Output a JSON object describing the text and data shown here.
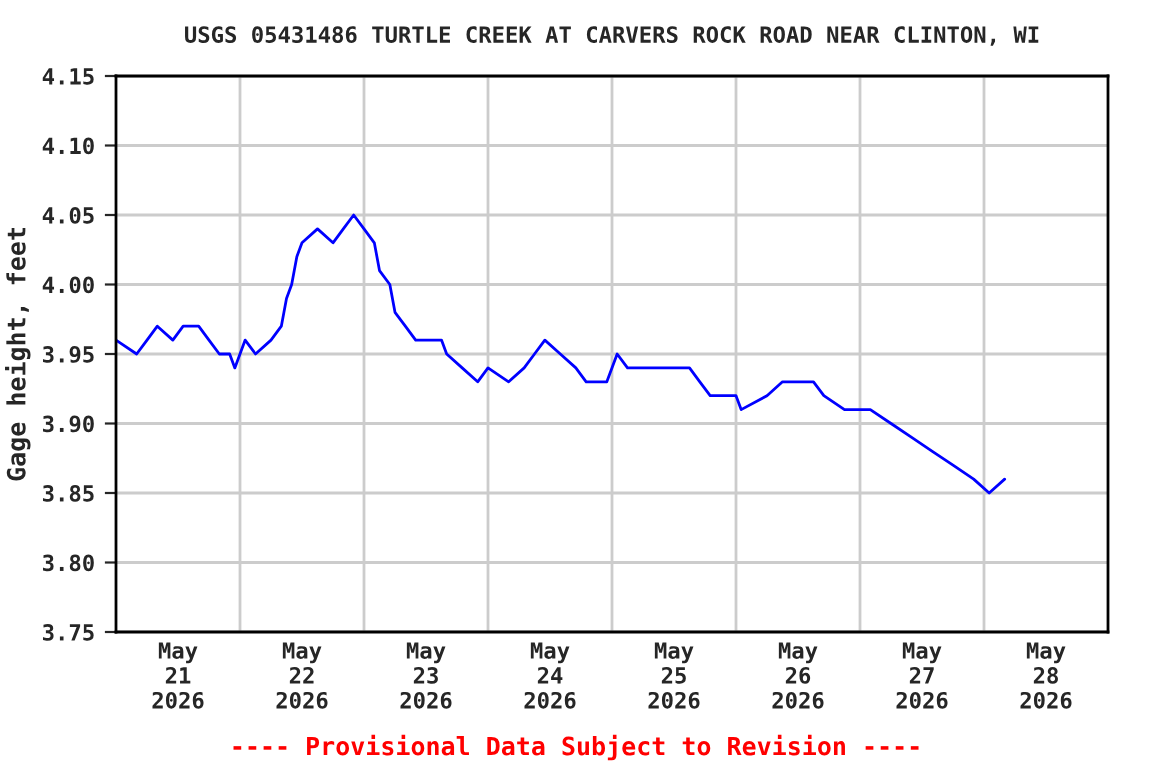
{
  "chart_data": {
    "type": "line",
    "title": "USGS 05431486 TURTLE CREEK AT CARVERS ROCK ROAD NEAR CLINTON, WI",
    "ylabel": "Gage height, feet",
    "annotations": [
      "---- Provisional Data Subject to Revision ----"
    ],
    "x": [
      "2026-05-21T00:00",
      "2026-05-21T04:00",
      "2026-05-21T06:00",
      "2026-05-21T08:00",
      "2026-05-21T11:00",
      "2026-05-21T13:00",
      "2026-05-21T16:00",
      "2026-05-21T18:00",
      "2026-05-21T20:00",
      "2026-05-21T22:00",
      "2026-05-21T23:00",
      "2026-05-22T01:00",
      "2026-05-22T03:00",
      "2026-05-22T06:00",
      "2026-05-22T08:00",
      "2026-05-22T09:00",
      "2026-05-22T10:00",
      "2026-05-22T11:00",
      "2026-05-22T12:00",
      "2026-05-22T15:00",
      "2026-05-22T18:00",
      "2026-05-22T20:00",
      "2026-05-22T22:00",
      "2026-05-23T00:00",
      "2026-05-23T02:00",
      "2026-05-23T03:00",
      "2026-05-23T05:00",
      "2026-05-23T06:00",
      "2026-05-23T08:00",
      "2026-05-23T10:00",
      "2026-05-23T15:00",
      "2026-05-23T16:00",
      "2026-05-23T19:00",
      "2026-05-23T22:00",
      "2026-05-24T00:00",
      "2026-05-24T04:00",
      "2026-05-24T07:00",
      "2026-05-24T09:00",
      "2026-05-24T11:00",
      "2026-05-24T14:00",
      "2026-05-24T17:00",
      "2026-05-24T19:00",
      "2026-05-24T23:00",
      "2026-05-25T01:00",
      "2026-05-25T03:00",
      "2026-05-25T09:00",
      "2026-05-25T15:00",
      "2026-05-25T17:00",
      "2026-05-25T19:00",
      "2026-05-26T00:00",
      "2026-05-26T01:00",
      "2026-05-26T06:00",
      "2026-05-26T09:00",
      "2026-05-26T15:00",
      "2026-05-26T17:00",
      "2026-05-26T21:00",
      "2026-05-27T02:00",
      "2026-05-27T06:00",
      "2026-05-27T10:00",
      "2026-05-27T14:00",
      "2026-05-27T18:00",
      "2026-05-27T22:00",
      "2026-05-28T01:00",
      "2026-05-28T04:00"
    ],
    "series": [
      {
        "color": "#0000ff",
        "values": [
          3.96,
          3.95,
          3.96,
          3.97,
          3.96,
          3.97,
          3.97,
          3.96,
          3.95,
          3.95,
          3.94,
          3.96,
          3.95,
          3.96,
          3.97,
          3.99,
          4.0,
          4.02,
          4.03,
          4.04,
          4.03,
          4.04,
          4.05,
          4.04,
          4.03,
          4.01,
          4.0,
          3.98,
          3.97,
          3.96,
          3.96,
          3.95,
          3.94,
          3.93,
          3.94,
          3.93,
          3.94,
          3.95,
          3.96,
          3.95,
          3.94,
          3.93,
          3.93,
          3.95,
          3.94,
          3.94,
          3.94,
          3.93,
          3.92,
          3.92,
          3.91,
          3.92,
          3.93,
          3.93,
          3.92,
          3.91,
          3.91,
          3.9,
          3.89,
          3.88,
          3.87,
          3.86,
          3.85,
          3.86
        ]
      }
    ],
    "xlim": [
      "2026-05-21T00:00",
      "2026-05-29T00:00"
    ],
    "xticks": [
      {
        "value": "2026-05-21T12:00",
        "label": "May\n21\n2026"
      },
      {
        "value": "2026-05-22T12:00",
        "label": "May\n22\n2026"
      },
      {
        "value": "2026-05-23T12:00",
        "label": "May\n23\n2026"
      },
      {
        "value": "2026-05-24T12:00",
        "label": "May\n24\n2026"
      },
      {
        "value": "2026-05-25T12:00",
        "label": "May\n25\n2026"
      },
      {
        "value": "2026-05-26T12:00",
        "label": "May\n26\n2026"
      },
      {
        "value": "2026-05-27T12:00",
        "label": "May\n27\n2026"
      },
      {
        "value": "2026-05-28T12:00",
        "label": "May\n28\n2026"
      },
      {
        "value": "2026-05-22T00:00",
        "label": null
      },
      {
        "value": "2026-05-23T00:00",
        "label": null
      },
      {
        "value": "2026-05-24T00:00",
        "label": null
      },
      {
        "value": "2026-05-25T00:00",
        "label": null
      },
      {
        "value": "2026-05-26T00:00",
        "label": null
      },
      {
        "value": "2026-05-27T00:00",
        "label": null
      },
      {
        "value": "2026-05-28T00:00",
        "label": null
      }
    ],
    "ylim": [
      3.75,
      4.15
    ],
    "yticks": [
      3.75,
      {
        "value": 3.8,
        "label": "3.80"
      },
      3.85,
      {
        "value": 3.9,
        "label": "3.90"
      },
      3.95,
      {
        "value": 4.0,
        "label": "4.00"
      },
      4.05,
      {
        "value": 4.1,
        "label": "4.10"
      },
      4.15
    ],
    "grid": true
  }
}
